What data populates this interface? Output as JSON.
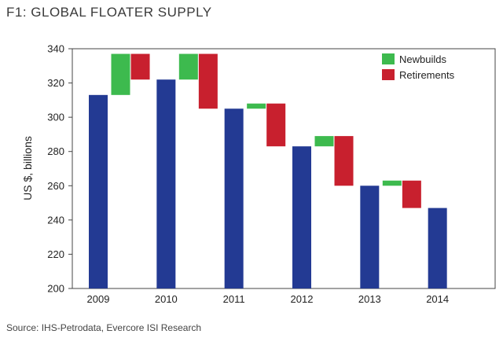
{
  "title": "F1:  GLOBAL FLOATER SUPPLY",
  "source": "Source: IHS-Petrodata, Evercore ISI Research",
  "chart_data": {
    "type": "bar",
    "subtype": "waterfall",
    "title": "F1:  GLOBAL FLOATER SUPPLY",
    "ylabel": "US $, billions",
    "xlabel": "",
    "ylim": [
      200,
      340
    ],
    "yticks": [
      200,
      220,
      240,
      260,
      280,
      300,
      320,
      340
    ],
    "categories": [
      "2009",
      "2010",
      "2011",
      "2012",
      "2013",
      "2014"
    ],
    "totals": [
      313,
      322,
      305,
      283,
      260,
      247
    ],
    "changes": [
      {
        "after": "2009",
        "newbuilds": [
          313,
          337
        ],
        "retirements": [
          337,
          322
        ]
      },
      {
        "after": "2010",
        "newbuilds": [
          322,
          337
        ],
        "retirements": [
          337,
          305
        ]
      },
      {
        "after": "2011",
        "newbuilds": [
          305,
          308
        ],
        "retirements": [
          308,
          283
        ]
      },
      {
        "after": "2012",
        "newbuilds": [
          283,
          289
        ],
        "retirements": [
          289,
          260
        ]
      },
      {
        "after": "2013",
        "newbuilds": [
          260,
          263
        ],
        "retirements": [
          263,
          247
        ]
      }
    ],
    "legend": [
      {
        "name": "Newbuilds",
        "color": "#3dba4e"
      },
      {
        "name": "Retirements",
        "color": "#c8202e"
      }
    ],
    "legend_position": "top-right",
    "total_color": "#233a93",
    "grid": false
  }
}
